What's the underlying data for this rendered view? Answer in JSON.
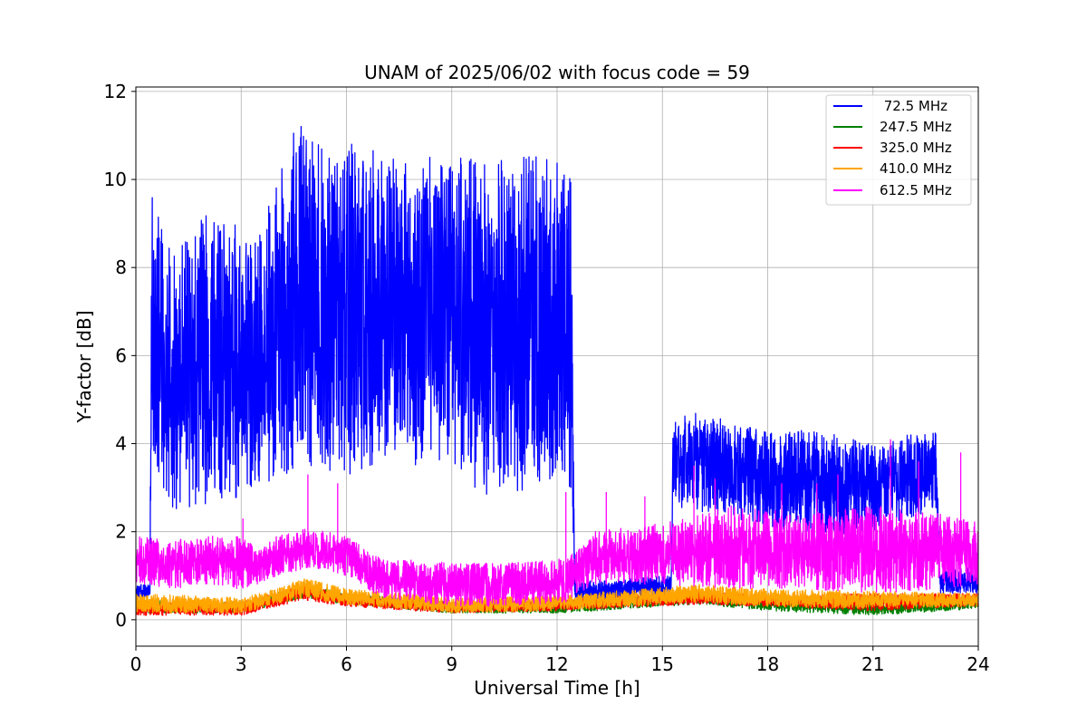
{
  "chart_data": {
    "type": "line",
    "title": "UNAM of 2025/06/02 with focus code = 59",
    "xlabel": "Universal Time [h]",
    "ylabel": "Y-factor [dB]",
    "xlim": [
      0,
      24
    ],
    "ylim": [
      -0.6,
      12.1
    ],
    "xticks": [
      0,
      3,
      6,
      9,
      12,
      15,
      18,
      21,
      24
    ],
    "yticks": [
      0,
      2,
      4,
      6,
      8,
      10,
      12
    ],
    "grid": true,
    "legend_position": "top-right",
    "series": [
      {
        "name": " 72.5 MHz",
        "color": "#0000ff",
        "envelope": [
          {
            "x": 0.0,
            "low": 0.5,
            "high": 0.8
          },
          {
            "x": 0.4,
            "low": 0.5,
            "high": 0.8
          },
          {
            "x": 0.45,
            "low": 3.0,
            "high": 9.8
          },
          {
            "x": 1.0,
            "low": 2.5,
            "high": 8.3
          },
          {
            "x": 2.0,
            "low": 2.6,
            "high": 9.3
          },
          {
            "x": 3.0,
            "low": 2.8,
            "high": 8.9
          },
          {
            "x": 3.5,
            "low": 2.9,
            "high": 8.7
          },
          {
            "x": 4.0,
            "low": 3.3,
            "high": 10.0
          },
          {
            "x": 4.3,
            "low": 3.0,
            "high": 10.6
          },
          {
            "x": 4.6,
            "low": 3.4,
            "high": 11.5
          },
          {
            "x": 5.0,
            "low": 3.5,
            "high": 11.0
          },
          {
            "x": 5.5,
            "low": 3.3,
            "high": 10.5
          },
          {
            "x": 6.0,
            "low": 3.2,
            "high": 11.2
          },
          {
            "x": 7.0,
            "low": 3.6,
            "high": 10.5
          },
          {
            "x": 8.0,
            "low": 3.5,
            "high": 10.4
          },
          {
            "x": 9.0,
            "low": 3.4,
            "high": 10.7
          },
          {
            "x": 10.0,
            "low": 2.8,
            "high": 10.4
          },
          {
            "x": 11.0,
            "low": 2.9,
            "high": 10.6
          },
          {
            "x": 12.0,
            "low": 3.2,
            "high": 10.4
          },
          {
            "x": 12.4,
            "low": 3.0,
            "high": 10.2
          },
          {
            "x": 12.5,
            "low": 0.4,
            "high": 0.9
          },
          {
            "x": 13.5,
            "low": 0.4,
            "high": 0.9
          },
          {
            "x": 15.0,
            "low": 0.5,
            "high": 1.0
          },
          {
            "x": 15.25,
            "low": 0.5,
            "high": 1.0
          },
          {
            "x": 15.3,
            "low": 2.6,
            "high": 4.6
          },
          {
            "x": 16.0,
            "low": 2.4,
            "high": 4.7
          },
          {
            "x": 17.0,
            "low": 2.3,
            "high": 4.5
          },
          {
            "x": 18.0,
            "low": 2.1,
            "high": 4.3
          },
          {
            "x": 19.0,
            "low": 2.0,
            "high": 4.3
          },
          {
            "x": 20.0,
            "low": 1.9,
            "high": 4.2
          },
          {
            "x": 21.0,
            "low": 2.0,
            "high": 4.0
          },
          {
            "x": 22.0,
            "low": 2.3,
            "high": 4.2
          },
          {
            "x": 22.8,
            "low": 2.5,
            "high": 4.3
          },
          {
            "x": 22.9,
            "low": 0.6,
            "high": 1.1
          },
          {
            "x": 24.0,
            "low": 0.6,
            "high": 1.2
          }
        ]
      },
      {
        "name": "247.5 MHz",
        "color": "#008000",
        "envelope": [
          {
            "x": 0.0,
            "low": 0.15,
            "high": 0.45
          },
          {
            "x": 3.0,
            "low": 0.15,
            "high": 0.4
          },
          {
            "x": 4.0,
            "low": 0.35,
            "high": 0.6
          },
          {
            "x": 4.8,
            "low": 0.5,
            "high": 0.85
          },
          {
            "x": 6.0,
            "low": 0.35,
            "high": 0.6
          },
          {
            "x": 9.0,
            "low": 0.15,
            "high": 0.4
          },
          {
            "x": 12.0,
            "low": 0.15,
            "high": 0.4
          },
          {
            "x": 16.0,
            "low": 0.35,
            "high": 0.65
          },
          {
            "x": 18.0,
            "low": 0.2,
            "high": 0.5
          },
          {
            "x": 21.0,
            "low": 0.1,
            "high": 0.4
          },
          {
            "x": 24.0,
            "low": 0.25,
            "high": 0.5
          }
        ]
      },
      {
        "name": "325.0 MHz",
        "color": "#ff0000",
        "envelope": [
          {
            "x": 0.0,
            "low": 0.1,
            "high": 0.4
          },
          {
            "x": 3.0,
            "low": 0.1,
            "high": 0.4
          },
          {
            "x": 4.0,
            "low": 0.3,
            "high": 0.6
          },
          {
            "x": 4.8,
            "low": 0.45,
            "high": 0.8
          },
          {
            "x": 6.0,
            "low": 0.3,
            "high": 0.55
          },
          {
            "x": 9.0,
            "low": 0.15,
            "high": 0.4
          },
          {
            "x": 12.0,
            "low": 0.2,
            "high": 0.45
          },
          {
            "x": 16.0,
            "low": 0.35,
            "high": 0.65
          },
          {
            "x": 18.0,
            "low": 0.3,
            "high": 0.55
          },
          {
            "x": 21.0,
            "low": 0.2,
            "high": 0.6
          },
          {
            "x": 24.0,
            "low": 0.3,
            "high": 0.6
          }
        ]
      },
      {
        "name": "410.0 MHz",
        "color": "#ffa500",
        "envelope": [
          {
            "x": 0.0,
            "low": 0.15,
            "high": 0.6
          },
          {
            "x": 3.0,
            "low": 0.15,
            "high": 0.5
          },
          {
            "x": 4.0,
            "low": 0.35,
            "high": 0.7
          },
          {
            "x": 4.8,
            "low": 0.5,
            "high": 0.95
          },
          {
            "x": 6.0,
            "low": 0.35,
            "high": 0.7
          },
          {
            "x": 9.0,
            "low": 0.15,
            "high": 0.5
          },
          {
            "x": 12.0,
            "low": 0.2,
            "high": 0.55
          },
          {
            "x": 16.0,
            "low": 0.4,
            "high": 0.8
          },
          {
            "x": 18.0,
            "low": 0.3,
            "high": 0.7
          },
          {
            "x": 21.0,
            "low": 0.25,
            "high": 0.65
          },
          {
            "x": 24.0,
            "low": 0.3,
            "high": 0.6
          }
        ]
      },
      {
        "name": "612.5 MHz",
        "color": "#ff00ff",
        "envelope": [
          {
            "x": 0.0,
            "low": 0.8,
            "high": 1.9
          },
          {
            "x": 1.0,
            "low": 0.7,
            "high": 1.8
          },
          {
            "x": 2.0,
            "low": 0.8,
            "high": 1.9
          },
          {
            "x": 3.0,
            "low": 0.7,
            "high": 1.9
          },
          {
            "x": 3.5,
            "low": 0.8,
            "high": 1.6
          },
          {
            "x": 4.0,
            "low": 1.0,
            "high": 1.9
          },
          {
            "x": 5.0,
            "low": 1.2,
            "high": 2.1
          },
          {
            "x": 6.0,
            "low": 1.0,
            "high": 1.9
          },
          {
            "x": 7.0,
            "low": 0.5,
            "high": 1.4
          },
          {
            "x": 9.0,
            "low": 0.3,
            "high": 1.3
          },
          {
            "x": 11.0,
            "low": 0.3,
            "high": 1.3
          },
          {
            "x": 12.3,
            "low": 0.4,
            "high": 1.4
          },
          {
            "x": 13.0,
            "low": 0.8,
            "high": 2.0
          },
          {
            "x": 15.0,
            "low": 0.8,
            "high": 2.2
          },
          {
            "x": 17.0,
            "low": 0.7,
            "high": 2.6
          },
          {
            "x": 19.0,
            "low": 0.7,
            "high": 2.4
          },
          {
            "x": 21.0,
            "low": 0.6,
            "high": 2.6
          },
          {
            "x": 23.0,
            "low": 0.7,
            "high": 2.4
          },
          {
            "x": 24.0,
            "low": 0.8,
            "high": 2.2
          }
        ],
        "spikes": [
          {
            "x": 3.05,
            "y": 2.3
          },
          {
            "x": 4.9,
            "y": 3.3
          },
          {
            "x": 5.75,
            "y": 3.1
          },
          {
            "x": 12.25,
            "y": 2.9
          },
          {
            "x": 13.4,
            "y": 2.9
          },
          {
            "x": 14.5,
            "y": 2.8
          },
          {
            "x": 15.9,
            "y": 3.5
          },
          {
            "x": 16.5,
            "y": 3.2
          },
          {
            "x": 18.4,
            "y": 3.1
          },
          {
            "x": 19.4,
            "y": 3.1
          },
          {
            "x": 20.0,
            "y": 3.3
          },
          {
            "x": 21.5,
            "y": 4.1
          },
          {
            "x": 22.3,
            "y": 3.6
          },
          {
            "x": 23.5,
            "y": 3.8
          }
        ]
      }
    ]
  }
}
